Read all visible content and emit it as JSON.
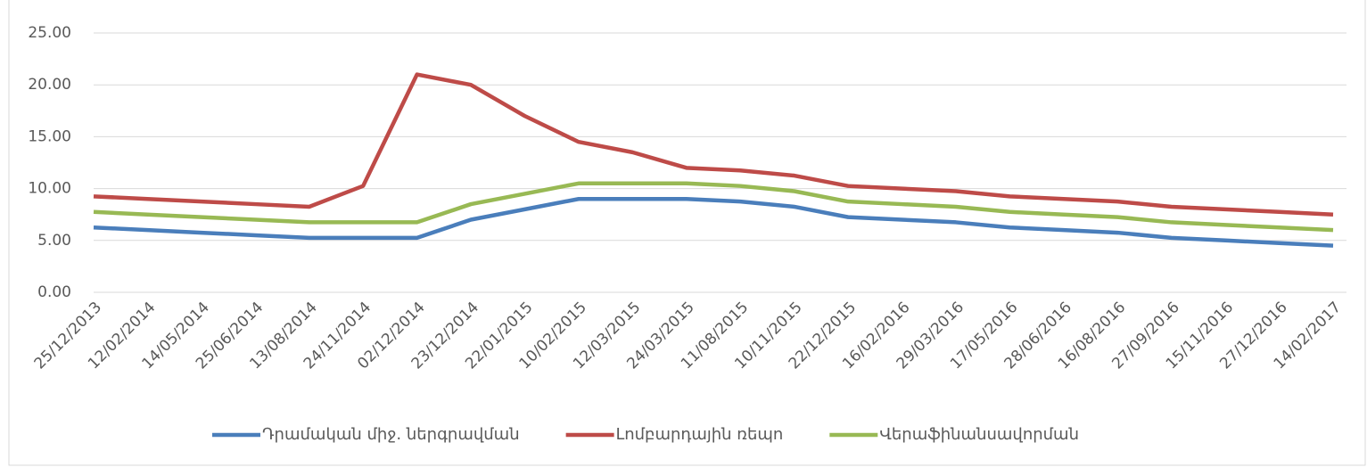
{
  "chart_data": {
    "type": "line",
    "categories": [
      "25/12/2013",
      "12/02/2014",
      "14/05/2014",
      "25/06/2014",
      "13/08/2014",
      "24/11/2014",
      "02/12/2014",
      "23/12/2014",
      "22/01/2015",
      "10/02/2015",
      "12/03/2015",
      "24/03/2015",
      "11/08/2015",
      "10/11/2015",
      "22/12/2015",
      "16/02/2016",
      "29/03/2016",
      "17/05/2016",
      "28/06/2016",
      "16/08/2016",
      "27/09/2016",
      "15/11/2016",
      "27/12/2016",
      "14/02/2017"
    ],
    "series": [
      {
        "name": "Դրամական միջ. ներգրավման",
        "color": "#4a7ebb",
        "values": [
          6.25,
          6,
          5.75,
          5.5,
          5.25,
          5.25,
          5.25,
          7,
          8,
          9,
          9,
          9,
          8.75,
          8.25,
          7.25,
          7,
          6.75,
          6.25,
          6,
          5.75,
          5.25,
          5,
          4.75,
          4.5
        ]
      },
      {
        "name": "Լոմբարդային ռեպո",
        "color": "#be4b48",
        "values": [
          9.25,
          9,
          8.75,
          8.5,
          8.25,
          10.25,
          21,
          20,
          17,
          14.5,
          13.5,
          12,
          11.75,
          11.25,
          10.25,
          10,
          9.75,
          9.25,
          9,
          8.75,
          8.25,
          8,
          7.75,
          7.5
        ]
      },
      {
        "name": "Վերաֆինանսավորման",
        "color": "#98b954",
        "values": [
          7.75,
          7.5,
          7.25,
          7,
          6.75,
          6.75,
          6.75,
          8.5,
          9.5,
          10.5,
          10.5,
          10.5,
          10.25,
          9.75,
          8.75,
          8.5,
          8.25,
          7.75,
          7.5,
          7.25,
          6.75,
          6.5,
          6.25,
          6
        ]
      }
    ],
    "ylim": [
      0,
      25
    ],
    "yticks": [
      {
        "value": 0,
        "label": "0.00"
      },
      {
        "value": 5,
        "label": "5.00"
      },
      {
        "value": 10,
        "label": "10.00"
      },
      {
        "value": 15,
        "label": "15.00"
      },
      {
        "value": 20,
        "label": "20.00"
      },
      {
        "value": 25,
        "label": "25.00"
      }
    ],
    "grid": true,
    "legend": "bottom"
  }
}
